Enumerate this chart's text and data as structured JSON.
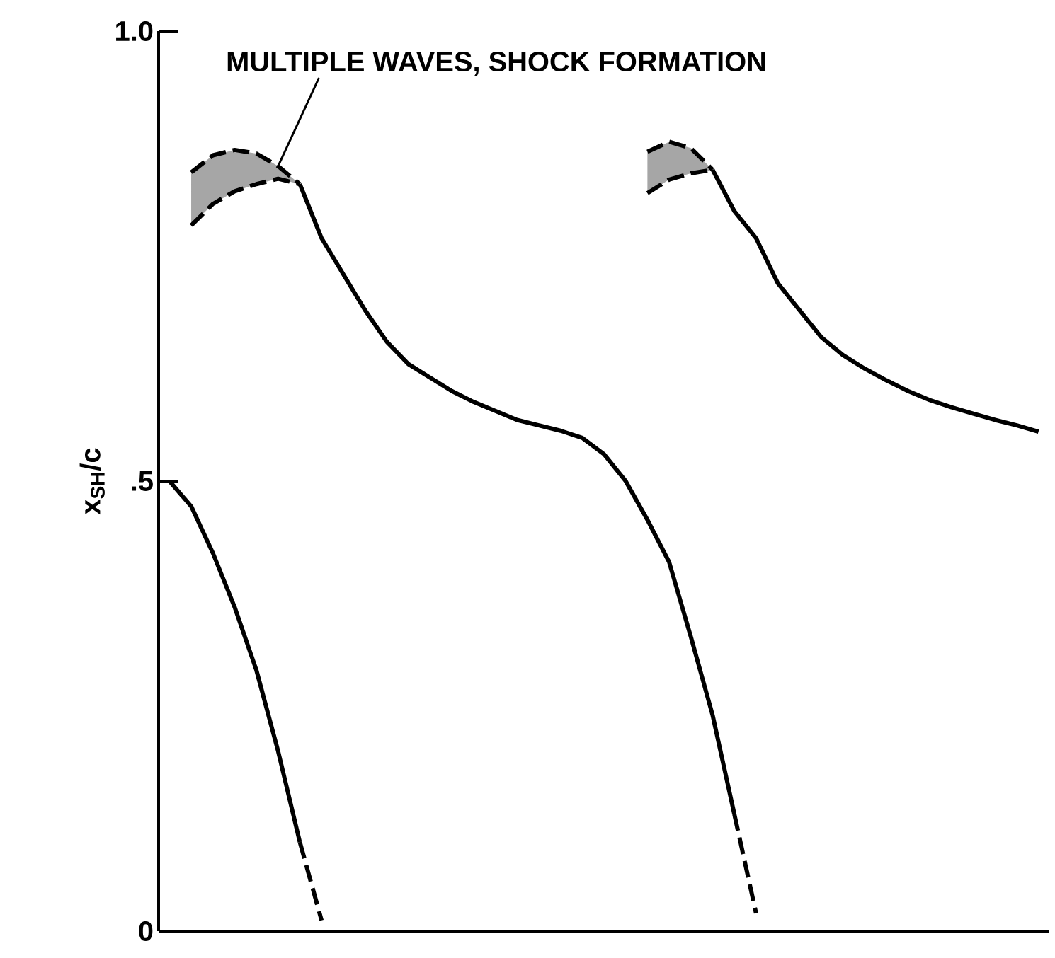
{
  "chart_data": {
    "type": "line",
    "ylabel": "x$_{SH}$/c",
    "categories": [
      null,
      null,
      null,
      null,
      null,
      null,
      null,
      null,
      null,
      null,
      null,
      null,
      null,
      null,
      null,
      null,
      null,
      null,
      null,
      null,
      null,
      null,
      null,
      null,
      null,
      null,
      null,
      null,
      null,
      null,
      null,
      null,
      null,
      null,
      null,
      null,
      null,
      null,
      null,
      null,
      null
    ],
    "ylim": [
      0,
      1
    ],
    "yticks": [
      0,
      {
        "value": 0.5,
        "label": ".5"
      },
      {
        "value": 1,
        "label": "1.0"
      }
    ],
    "tick_labels": "y",
    "grid": false,
    "marker": "none",
    "annotations": [
      "MULTIPLE WAVES, SHOCK FORMATION"
    ],
    "series": [
      {
        "color": "#000000",
        "line_style": "solid",
        "values": [
          0.5,
          0.472,
          0.42,
          0.36,
          0.29,
          0.2,
          0.099,
          null,
          null,
          null,
          null,
          null,
          null,
          null,
          null,
          null,
          null,
          null,
          null,
          null,
          null,
          null,
          null,
          null,
          null,
          null,
          null,
          null,
          null,
          null,
          null,
          null,
          null,
          null,
          null,
          null,
          null,
          null,
          null,
          null,
          null
        ]
      },
      {
        "color": "#000000",
        "line_style": "dashed",
        "values": [
          null,
          null,
          null,
          null,
          null,
          null,
          0.099,
          0.012,
          null,
          null,
          null,
          null,
          null,
          null,
          null,
          null,
          null,
          null,
          null,
          null,
          null,
          null,
          null,
          null,
          null,
          null,
          null,
          null,
          null,
          null,
          null,
          null,
          null,
          null,
          null,
          null,
          null,
          null,
          null,
          null,
          null
        ]
      },
      {
        "color": "#000000",
        "line_style": "dashed",
        "values": [
          null,
          0.843,
          0.862,
          0.868,
          0.864,
          0.85,
          0.83,
          null,
          null,
          null,
          null,
          null,
          null,
          null,
          null,
          null,
          null,
          null,
          null,
          null,
          null,
          null,
          null,
          null,
          null,
          null,
          null,
          null,
          null,
          null,
          null,
          null,
          null,
          null,
          null,
          null,
          null,
          null,
          null,
          null,
          null
        ],
        "lower": [
          null,
          0.784,
          0.808,
          0.822,
          0.83,
          0.836,
          0.83,
          null,
          null,
          null,
          null,
          null,
          null,
          null,
          null,
          null,
          null,
          null,
          null,
          null,
          null,
          null,
          null,
          null,
          null,
          null,
          null,
          null,
          null,
          null,
          null,
          null,
          null,
          null,
          null,
          null,
          null,
          null,
          null,
          null,
          null
        ],
        "upper": [
          null,
          0.843,
          0.862,
          0.868,
          0.864,
          0.85,
          0.83,
          null,
          null,
          null,
          null,
          null,
          null,
          null,
          null,
          null,
          null,
          null,
          null,
          null,
          null,
          null,
          null,
          null,
          null,
          null,
          null,
          null,
          null,
          null,
          null,
          null,
          null,
          null,
          null,
          null,
          null,
          null,
          null,
          null,
          null
        ]
      },
      {
        "color": "#000000",
        "line_style": "dashed",
        "values": [
          null,
          0.784,
          0.808,
          0.822,
          0.83,
          0.836,
          0.83,
          null,
          null,
          null,
          null,
          null,
          null,
          null,
          null,
          null,
          null,
          null,
          null,
          null,
          null,
          null,
          null,
          null,
          null,
          null,
          null,
          null,
          null,
          null,
          null,
          null,
          null,
          null,
          null,
          null,
          null,
          null,
          null,
          null,
          null
        ]
      },
      {
        "color": "#000000",
        "line_style": "solid",
        "values": [
          null,
          null,
          null,
          null,
          null,
          null,
          0.83,
          0.77,
          0.73,
          0.69,
          0.655,
          0.63,
          0.615,
          0.6,
          0.588,
          0.578,
          0.568,
          0.562,
          0.556,
          0.548,
          0.53,
          0.5,
          0.457,
          0.41,
          0.327,
          0.24,
          0.13,
          null,
          null,
          null,
          null,
          null,
          null,
          null,
          null,
          null,
          null,
          null,
          null,
          null,
          null
        ]
      },
      {
        "color": "#000000",
        "line_style": "dashed",
        "values": [
          null,
          null,
          null,
          null,
          null,
          null,
          null,
          null,
          null,
          null,
          null,
          null,
          null,
          null,
          null,
          null,
          null,
          null,
          null,
          null,
          null,
          null,
          null,
          null,
          null,
          null,
          0.13,
          0.02,
          null,
          null,
          null,
          null,
          null,
          null,
          null,
          null,
          null,
          null,
          null,
          null,
          null
        ]
      },
      {
        "color": "#000000",
        "line_style": "dashed",
        "values": [
          null,
          null,
          null,
          null,
          null,
          null,
          null,
          null,
          null,
          null,
          null,
          null,
          null,
          null,
          null,
          null,
          null,
          null,
          null,
          null,
          null,
          null,
          0.866,
          0.877,
          0.87,
          0.846,
          null,
          null,
          null,
          null,
          null,
          null,
          null,
          null,
          null,
          null,
          null,
          null,
          null,
          null,
          null
        ],
        "lower": [
          null,
          null,
          null,
          null,
          null,
          null,
          null,
          null,
          null,
          null,
          null,
          null,
          null,
          null,
          null,
          null,
          null,
          null,
          null,
          null,
          null,
          null,
          0.82,
          0.835,
          0.842,
          0.846,
          null,
          null,
          null,
          null,
          null,
          null,
          null,
          null,
          null,
          null,
          null,
          null,
          null,
          null,
          null
        ],
        "upper": [
          null,
          null,
          null,
          null,
          null,
          null,
          null,
          null,
          null,
          null,
          null,
          null,
          null,
          null,
          null,
          null,
          null,
          null,
          null,
          null,
          null,
          null,
          0.866,
          0.877,
          0.87,
          0.846,
          null,
          null,
          null,
          null,
          null,
          null,
          null,
          null,
          null,
          null,
          null,
          null,
          null,
          null,
          null
        ]
      },
      {
        "color": "#000000",
        "line_style": "dashed",
        "values": [
          null,
          null,
          null,
          null,
          null,
          null,
          null,
          null,
          null,
          null,
          null,
          null,
          null,
          null,
          null,
          null,
          null,
          null,
          null,
          null,
          null,
          null,
          0.82,
          0.835,
          0.842,
          0.846,
          null,
          null,
          null,
          null,
          null,
          null,
          null,
          null,
          null,
          null,
          null,
          null,
          null,
          null,
          null
        ]
      },
      {
        "color": "#000000",
        "line_style": "solid",
        "values": [
          null,
          null,
          null,
          null,
          null,
          null,
          null,
          null,
          null,
          null,
          null,
          null,
          null,
          null,
          null,
          null,
          null,
          null,
          null,
          null,
          null,
          null,
          null,
          null,
          null,
          0.846,
          0.8,
          0.77,
          0.72,
          0.69,
          0.66,
          0.64,
          0.625,
          0.612,
          0.6,
          0.59,
          0.582,
          0.575,
          0.568,
          0.562,
          0.555
        ]
      }
    ]
  }
}
